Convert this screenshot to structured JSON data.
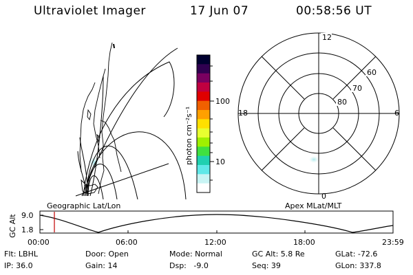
{
  "header": {
    "instrument": "Ultraviolet Imager",
    "date": "17 Jun 07",
    "time": "00:58:56 UT"
  },
  "colorbar": {
    "unit_label": "photon cm⁻²s⁻¹",
    "ticks": [
      "100",
      "10"
    ],
    "colors": [
      "#000030",
      "#300050",
      "#7a0060",
      "#c00040",
      "#e00000",
      "#f06000",
      "#ffa000",
      "#ffe000",
      "#e8ff30",
      "#a0f000",
      "#40e040",
      "#20d0b0",
      "#60e8e8",
      "#c8f4f4",
      "#ffffff"
    ]
  },
  "polar_plot": {
    "mlt_labels": {
      "top": "12",
      "left": "18",
      "right": "6",
      "bottom": "0"
    },
    "lat_labels": [
      "60",
      "70",
      "80"
    ]
  },
  "panel_labels": {
    "left": "Geographic Lat/Lon",
    "right": "Apex MLat/MLT"
  },
  "altitude_strip": {
    "axis_label": "GC Alt",
    "y_ticks": [
      "9.0",
      "1.8"
    ],
    "x_ticks": [
      "00:00",
      "06:00",
      "12:00",
      "18:00",
      "23:59"
    ],
    "marker_color": "#c00000"
  },
  "info": {
    "filter": "Flt: LBHL",
    "ip": "IP: 36.0",
    "door": "Door: Open",
    "gain": "Gain: 14",
    "mode": "Mode: Normal",
    "dsp": "Dsp:   -9.0",
    "gc_alt": "GC Alt: 5.8 Re",
    "seq": "Seq: 39",
    "glat": "GLat: -72.6",
    "glon": "GLon: 337.8"
  }
}
